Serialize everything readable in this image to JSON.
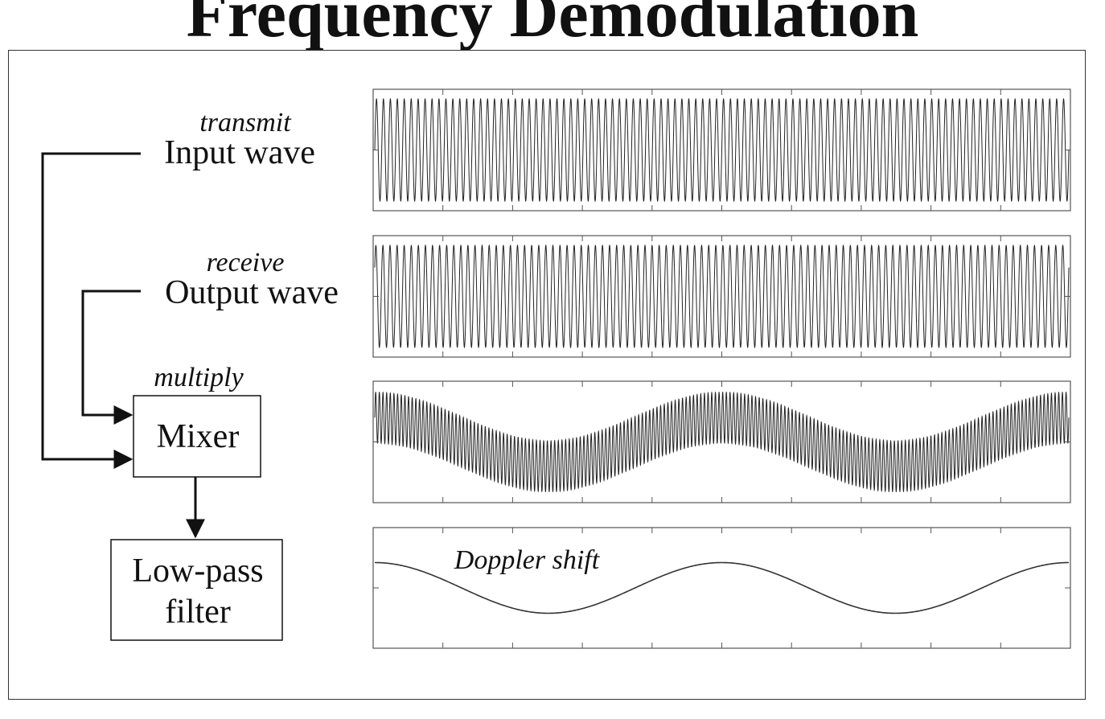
{
  "title": "Frequency Demodulation",
  "blocks": {
    "input": {
      "note": "transmit",
      "label": "Input wave"
    },
    "output": {
      "note": "receive",
      "label": "Output wave"
    },
    "mixer": {
      "note": "multiply",
      "label": "Mixer"
    },
    "filter": {
      "label_line1": "Low-pass",
      "label_line2": "filter"
    }
  },
  "plots": {
    "doppler_label": "Doppler shift",
    "carrier_cycles": 100,
    "output_cycles": 98,
    "envelope_cycles": 2.5
  },
  "colors": {
    "ink": "#222222",
    "axis": "#555555",
    "frame": "#333333"
  }
}
